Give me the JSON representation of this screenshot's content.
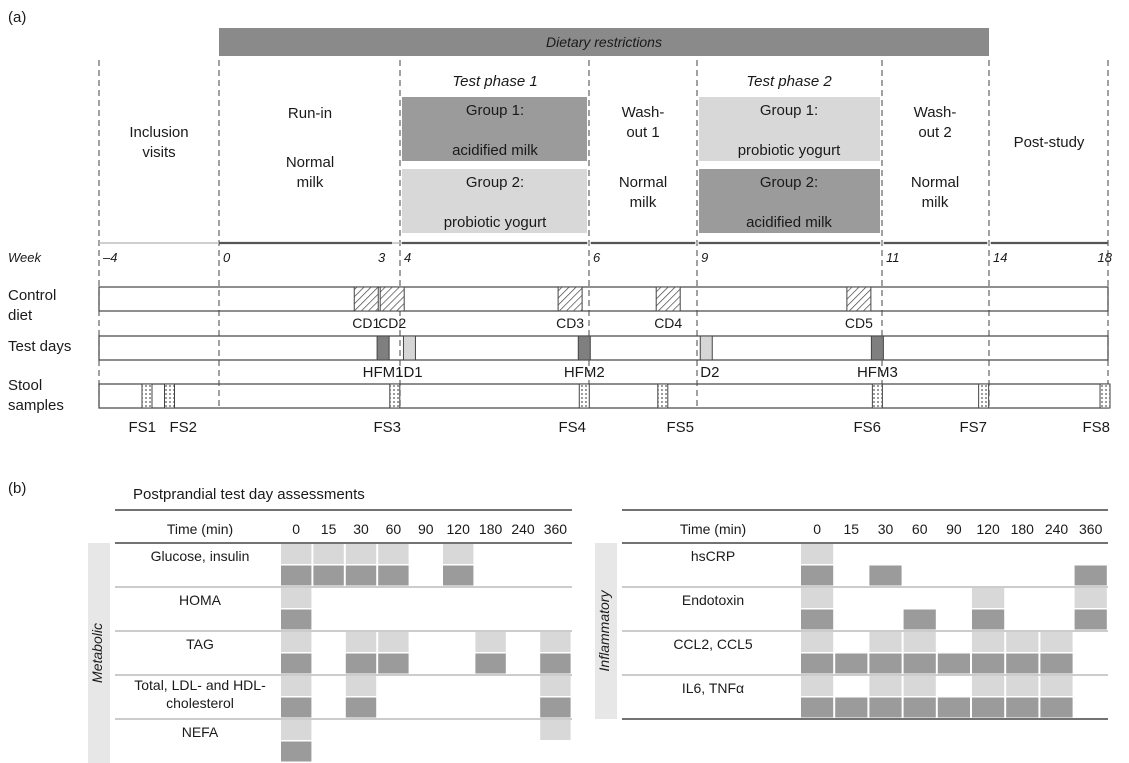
{
  "panel_labels": {
    "a": "(a)",
    "b": "(b)"
  },
  "colors": {
    "dark": "#9b9b9b",
    "light": "#d8d8d8",
    "banner": "#8a8a8a",
    "side_band": "#e7e7e7",
    "line": "#555555"
  },
  "timeline": {
    "banner": "Dietary restrictions",
    "week_label": "Week",
    "weeks": [
      {
        "w": -4,
        "label": "–4"
      },
      {
        "w": 0,
        "label": "0"
      },
      {
        "w": 3,
        "label": "3"
      },
      {
        "w": 4,
        "label": "4"
      },
      {
        "w": 6,
        "label": "6"
      },
      {
        "w": 9,
        "label": "9"
      },
      {
        "w": 11,
        "label": "11"
      },
      {
        "w": 14,
        "label": "14"
      },
      {
        "w": 18,
        "label": "18"
      }
    ],
    "phases": {
      "inclusion": [
        "Inclusion",
        "visits"
      ],
      "runin_title": "Run-in",
      "runin_milk": [
        "Normal",
        "milk"
      ],
      "test1_title": "Test phase 1",
      "test2_title": "Test phase 2",
      "group1_label": "Group 1:",
      "group2_label": "Group 2:",
      "acidified": "acidified milk",
      "probiotic": "probiotic yogurt",
      "washout1": [
        "Wash-",
        "out 1"
      ],
      "washout2": [
        "Wash-",
        "out 2"
      ],
      "normal_milk": [
        "Normal",
        "milk"
      ],
      "post_study": "Post-study"
    },
    "rows": {
      "control_diet": [
        "Control",
        "diet"
      ],
      "test_days": "Test days",
      "stool": [
        "Stool",
        "samples"
      ]
    },
    "control_diets": [
      {
        "label": "CD1",
        "w": 2.85
      },
      {
        "label": "CD2",
        "w": 3.7
      },
      {
        "label": "CD3",
        "w": 5.8
      },
      {
        "label": "CD4",
        "w": 8.2
      },
      {
        "label": "CD5",
        "w": 10.75
      }
    ],
    "test_days": [
      {
        "label": "HFM1",
        "w": 3.35,
        "kind": "dark"
      },
      {
        "label": "D1",
        "w": 4.1,
        "kind": "light"
      },
      {
        "label": "HFM2",
        "w": 5.95,
        "kind": "dark"
      },
      {
        "label": "D2",
        "w": 9.1,
        "kind": "light"
      },
      {
        "label": "HFM3",
        "w": 10.95,
        "kind": "dark"
      }
    ],
    "stool_samples": [
      {
        "label": "FS1",
        "w": -2.4
      },
      {
        "label": "FS2",
        "w": -1.65
      },
      {
        "label": "FS3",
        "w": 3.8
      },
      {
        "label": "FS4",
        "w": 5.95
      },
      {
        "label": "FS5",
        "w": 8.05
      },
      {
        "label": "FS6",
        "w": 10.95
      },
      {
        "label": "FS7",
        "w": 13.85
      },
      {
        "label": "FS8",
        "w": 17.9
      }
    ]
  },
  "assessments": {
    "title": "Postprandial test day assessments",
    "time_header": "Time (min)",
    "times": [
      "0",
      "15",
      "30",
      "60",
      "90",
      "120",
      "180",
      "240",
      "360"
    ],
    "metabolic": {
      "group_label": "Metabolic",
      "rows": [
        {
          "label": [
            "Glucose, insulin"
          ],
          "light": [
            0,
            1,
            2,
            3,
            5
          ],
          "dark": [
            0,
            1,
            2,
            3,
            5
          ]
        },
        {
          "label": [
            "HOMA"
          ],
          "light": [
            0
          ],
          "dark": [
            0
          ]
        },
        {
          "label": [
            "TAG"
          ],
          "light": [
            0,
            2,
            3,
            6,
            8
          ],
          "dark": [
            0,
            2,
            3,
            6,
            8
          ]
        },
        {
          "label": [
            "Total, LDL- and HDL-",
            "cholesterol"
          ],
          "light": [
            0,
            2,
            8
          ],
          "dark": [
            0,
            2,
            8
          ]
        },
        {
          "label": [
            "NEFA"
          ],
          "light": [
            0,
            8
          ],
          "dark": [
            0
          ]
        }
      ]
    },
    "inflammatory": {
      "group_label": "Inflammatory",
      "rows": [
        {
          "label": [
            "hsCRP"
          ],
          "light": [
            0
          ],
          "dark": [
            0,
            2,
            8
          ]
        },
        {
          "label": [
            "Endotoxin"
          ],
          "light": [
            0,
            5,
            8
          ],
          "dark": [
            0,
            3,
            5,
            8
          ]
        },
        {
          "label": [
            "CCL2, CCL5"
          ],
          "light": [
            0,
            2,
            3,
            5,
            6,
            7
          ],
          "dark": [
            0,
            1,
            2,
            3,
            4,
            5,
            6,
            7
          ]
        },
        {
          "label": [
            "IL6, TNFα"
          ],
          "light": [
            0,
            2,
            3,
            5,
            6,
            7
          ],
          "dark": [
            0,
            1,
            2,
            3,
            4,
            5,
            6,
            7
          ]
        }
      ]
    }
  }
}
